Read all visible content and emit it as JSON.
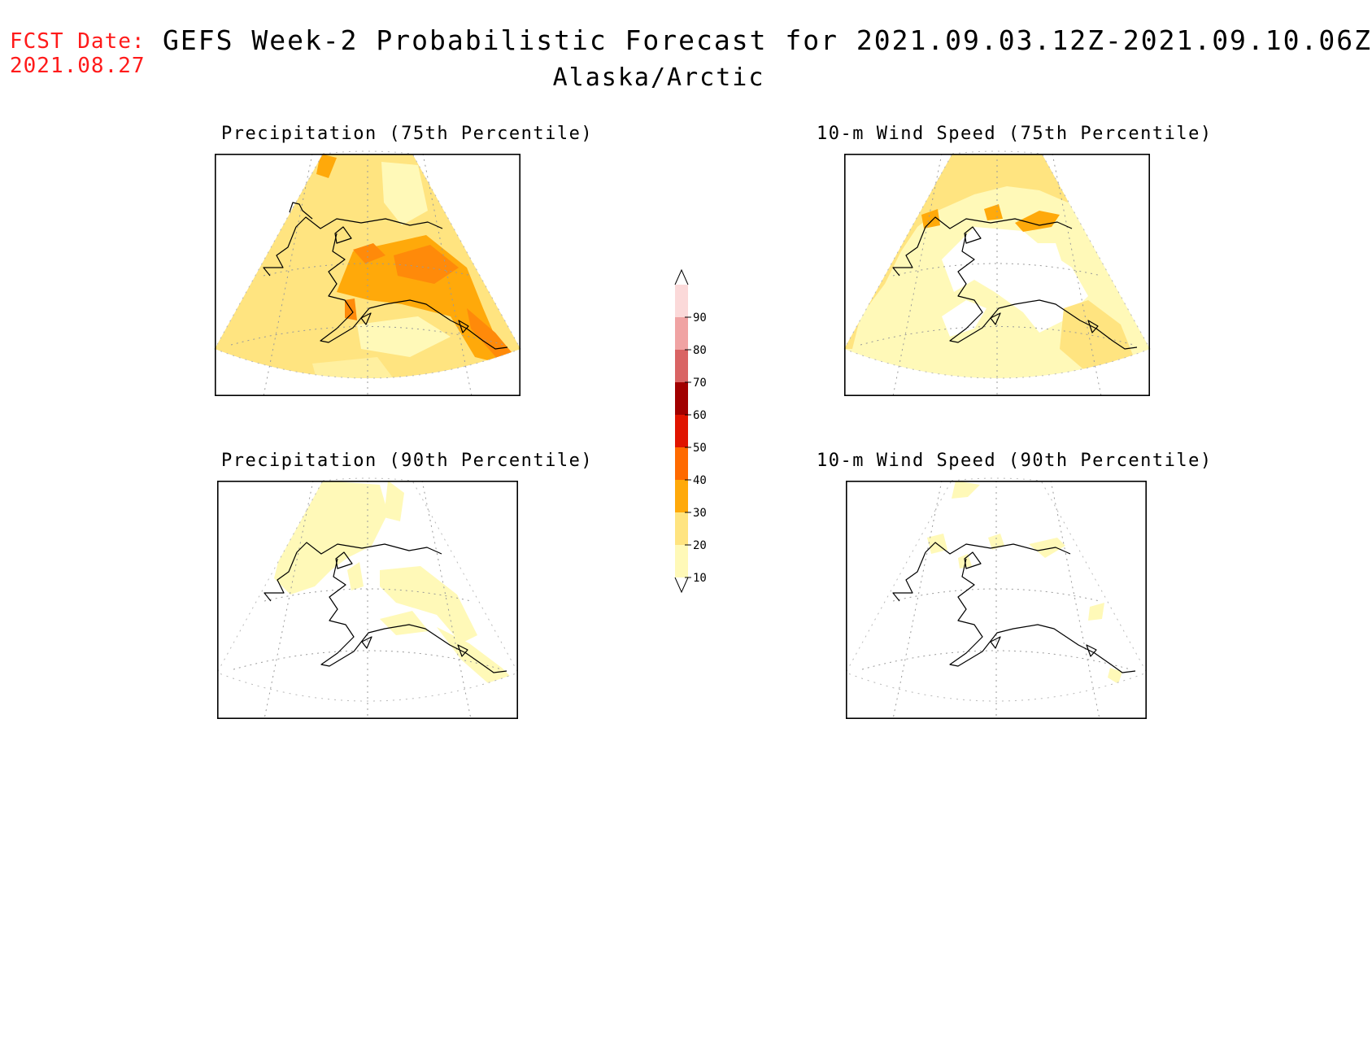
{
  "header": {
    "fcst_label": "FCST Date:",
    "fcst_date": "2021.08.27",
    "title": "GEFS Week-2 Probabilistic Forecast for 2021.09.03.12Z-2021.09.10.06Z",
    "subtitle": "Alaska/Arctic"
  },
  "panels": [
    {
      "id": "precip75",
      "title": "Precipitation (75th Percentile)",
      "coverage": "full",
      "base_level": 20
    },
    {
      "id": "wind75",
      "title": "10-m Wind Speed (75th Percentile)",
      "coverage": "partial",
      "base_level": 10
    },
    {
      "id": "precip90",
      "title": "Precipitation (90th Percentile)",
      "coverage": "partial",
      "base_level": 10
    },
    {
      "id": "wind90",
      "title": "10-m Wind Speed (90th Percentile)",
      "coverage": "sparse",
      "base_level": 10
    }
  ],
  "colorbar": {
    "levels": [
      "10",
      "20",
      "30",
      "40",
      "50",
      "60",
      "70",
      "80",
      "90"
    ],
    "colors": [
      "#fff9b8",
      "#ffe480",
      "#ffa90a",
      "#ff6a00",
      "#e01400",
      "#a10000",
      "#d96464",
      "#f0a3a3",
      "#fbd9d9"
    ]
  },
  "colors": {
    "fcst": "#ff1a1a",
    "level10": "#fff9b8",
    "level20": "#ffe480",
    "level30": "#ffa90a",
    "level40": "#ff6a00"
  }
}
